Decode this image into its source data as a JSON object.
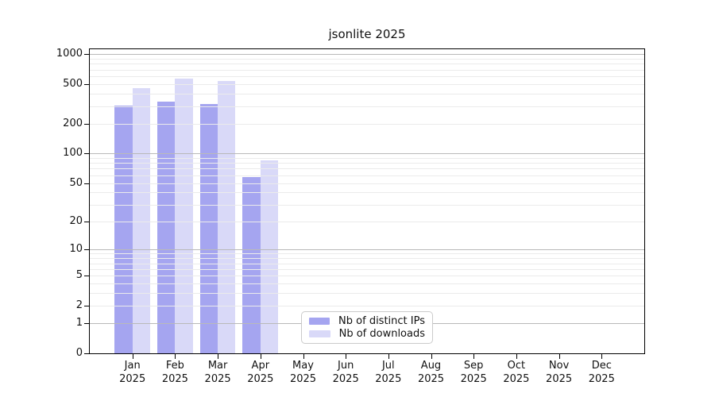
{
  "title": "jsonlite 2025",
  "chart_data": {
    "type": "bar",
    "title": "jsonlite 2025",
    "categories": [
      {
        "month": "Jan",
        "year": "2025"
      },
      {
        "month": "Feb",
        "year": "2025"
      },
      {
        "month": "Mar",
        "year": "2025"
      },
      {
        "month": "Apr",
        "year": "2025"
      },
      {
        "month": "May",
        "year": "2025"
      },
      {
        "month": "Jun",
        "year": "2025"
      },
      {
        "month": "Jul",
        "year": "2025"
      },
      {
        "month": "Aug",
        "year": "2025"
      },
      {
        "month": "Sep",
        "year": "2025"
      },
      {
        "month": "Oct",
        "year": "2025"
      },
      {
        "month": "Nov",
        "year": "2025"
      },
      {
        "month": "Dec",
        "year": "2025"
      }
    ],
    "series": [
      {
        "name": "Nb of distinct IPs",
        "color": "#a5a5f0",
        "values": [
          305,
          330,
          315,
          57,
          null,
          null,
          null,
          null,
          null,
          null,
          null,
          null
        ]
      },
      {
        "name": "Nb of downloads",
        "color": "#d9d9f8",
        "values": [
          455,
          565,
          540,
          85,
          null,
          null,
          null,
          null,
          null,
          null,
          null,
          null
        ]
      }
    ],
    "xlabel": "",
    "ylabel": "",
    "yscale": "log1p",
    "ylim": [
      0,
      1117
    ],
    "y_ticks": [
      0,
      1,
      2,
      5,
      10,
      20,
      50,
      100,
      200,
      500,
      1000
    ],
    "grid_major": [
      1,
      10,
      100,
      1000
    ],
    "grid_minor": [
      2,
      3,
      4,
      5,
      6,
      7,
      8,
      9,
      20,
      30,
      40,
      50,
      60,
      70,
      80,
      90,
      200,
      300,
      400,
      500,
      600,
      700,
      800,
      900
    ],
    "grid": "on",
    "legend_position": "bottom-center",
    "colors": {
      "grid_major": "#b9b9b9",
      "grid_minor": "#ebebeb",
      "spine": "#000000",
      "text": "#111111",
      "background": "#ffffff"
    }
  },
  "legend": {
    "items": [
      {
        "label": "Nb of distinct IPs"
      },
      {
        "label": "Nb of downloads"
      }
    ]
  }
}
